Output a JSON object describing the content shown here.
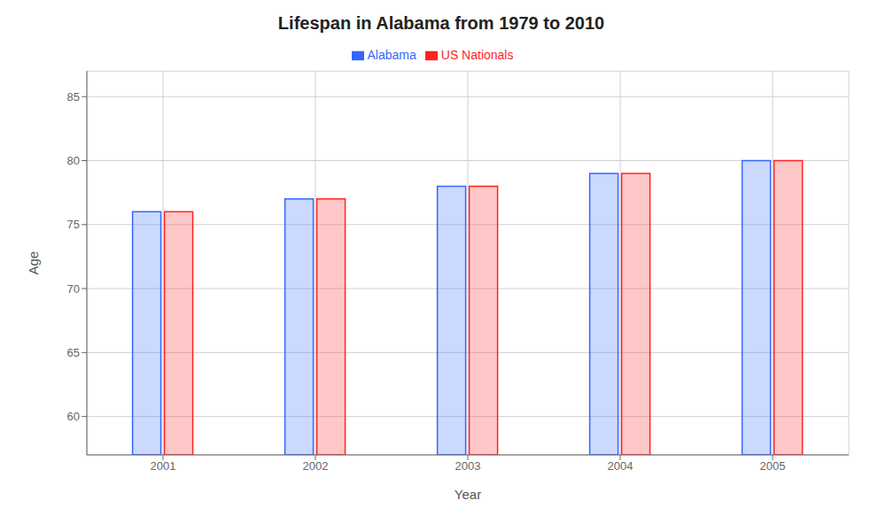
{
  "chart_data": {
    "type": "bar",
    "title": "Lifespan in Alabama from 1979 to 2010",
    "x_label": "Year",
    "y_label": "Age",
    "categories": [
      "2001",
      "2002",
      "2003",
      "2004",
      "2005"
    ],
    "series": [
      {
        "name": "Alabama",
        "color": "#3366ff",
        "values": [
          76,
          77,
          78,
          79,
          80
        ]
      },
      {
        "name": "US Nationals",
        "color": "#ff2222",
        "values": [
          76,
          77,
          78,
          79,
          80
        ]
      }
    ],
    "ylim": [
      57,
      87
    ],
    "yticks": [
      60,
      65,
      70,
      75,
      80,
      85
    ],
    "grid": true,
    "legend": "top"
  }
}
